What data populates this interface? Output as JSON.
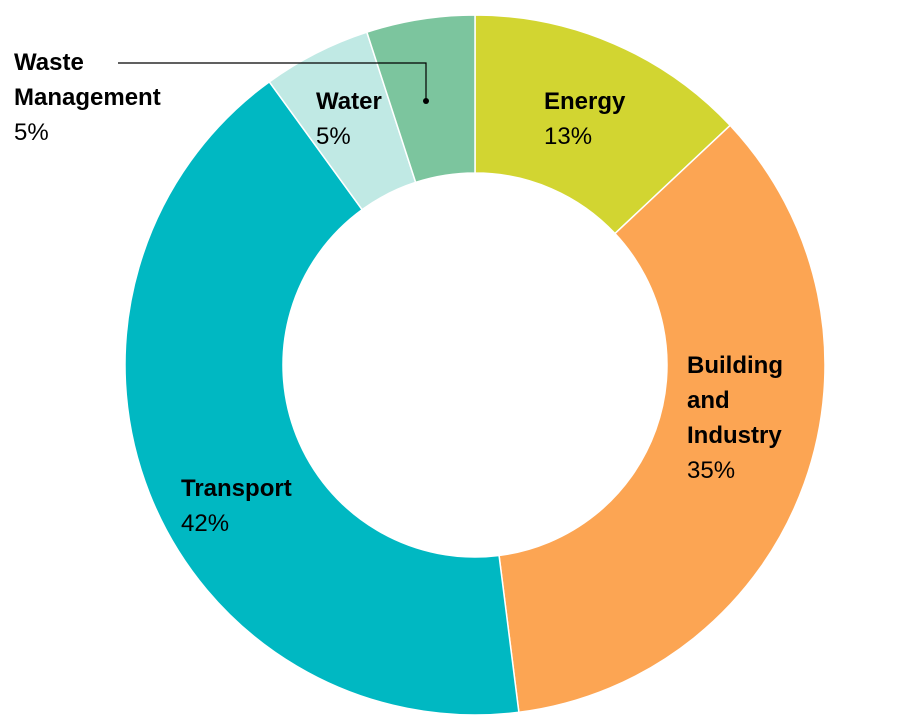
{
  "chart_data": {
    "type": "pie",
    "style": "donut",
    "legend": "none",
    "slices": [
      {
        "name": "Energy",
        "value": 13,
        "label": "Energy",
        "value_label": "13%",
        "color": "#d2d531"
      },
      {
        "name": "Building and Industry",
        "value": 35,
        "label": "Building\nand\nIndustry",
        "value_label": "35%",
        "color": "#fca553"
      },
      {
        "name": "Transport",
        "value": 42,
        "label": "Transport",
        "value_label": "42%",
        "color": "#00b8c2"
      },
      {
        "name": "Water",
        "value": 5,
        "label": "Water",
        "value_label": "5%",
        "color": "#c0e9e4"
      },
      {
        "name": "Waste Management",
        "value": 5,
        "label": "Waste\nManagement",
        "value_label": "5%",
        "color": "#7cc59e"
      }
    ]
  }
}
